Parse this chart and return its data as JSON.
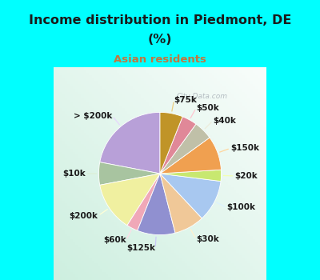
{
  "title_line1": "Income distribution in Piedmont, DE",
  "title_line2": "(%)",
  "subtitle": "Asian residents",
  "labels": [
    "> $200k",
    "$10k",
    "$200k",
    "$60k",
    "$125k",
    "$30k",
    "$100k",
    "$20k",
    "$150k",
    "$40k",
    "$50k",
    "$75k"
  ],
  "sizes": [
    22,
    6,
    13,
    3,
    10,
    8,
    11,
    3,
    9,
    5,
    4,
    6
  ],
  "colors": [
    "#b8a0d8",
    "#a8c4a0",
    "#f0f0a0",
    "#f0a8b8",
    "#9090d0",
    "#f0c898",
    "#a8c8f0",
    "#c8e870",
    "#f0a050",
    "#c0c0a8",
    "#e08898",
    "#c09428"
  ],
  "background_cyan": "#00ffff",
  "chart_bg_color": "#e8f5ee",
  "title_color": "#1a1a1a",
  "subtitle_color": "#c07840",
  "watermark_text": "City-Data.com",
  "startangle": 90,
  "label_fontsize": 7.5,
  "label_distance": 1.22
}
